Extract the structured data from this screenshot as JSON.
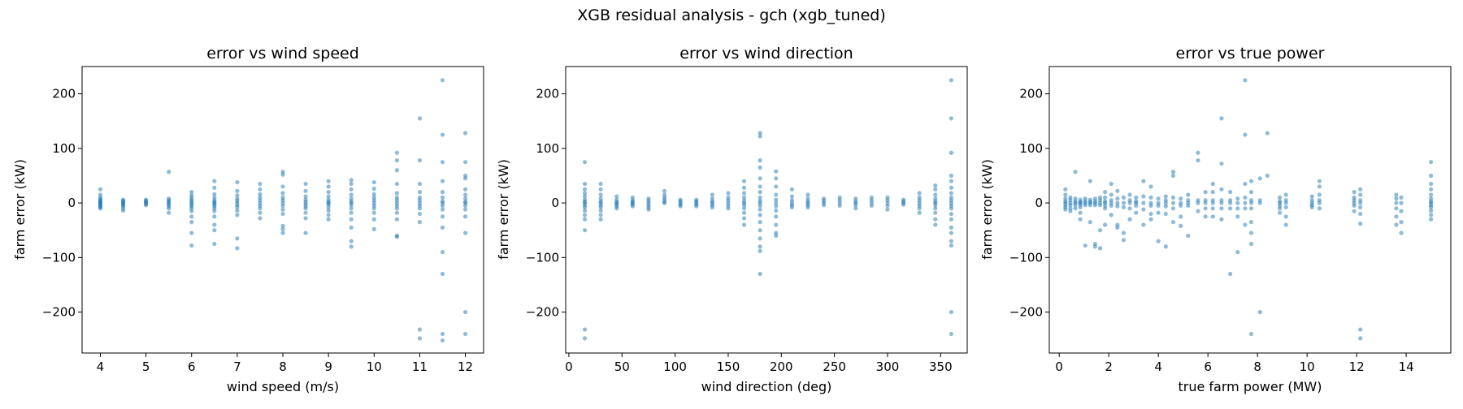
{
  "figure": {
    "suptitle": "XGB residual analysis - gch (xgb_tuned)",
    "point_color": "#1f77b4",
    "background": "#ffffff"
  },
  "chart_data": [
    {
      "type": "scatter",
      "title": "error vs wind speed",
      "xlabel": "wind speed (m/s)",
      "ylabel": "farm error (kW)",
      "xlim": [
        3.6,
        12.4
      ],
      "ylim": [
        -275,
        250
      ],
      "xticks": [
        4,
        5,
        6,
        7,
        8,
        9,
        10,
        11,
        12
      ],
      "xtick_labels": [
        "4",
        "5",
        "6",
        "7",
        "8",
        "9",
        "10",
        "11",
        "12"
      ],
      "yticks": [
        -200,
        -100,
        0,
        100,
        200
      ],
      "ytick_labels": [
        "−200",
        "−100",
        "0",
        "100",
        "200"
      ],
      "grid": false,
      "columns": [
        {
          "x": 4,
          "y": [
            25,
            15,
            10,
            7,
            5,
            3,
            1,
            0,
            -2,
            -4,
            -6,
            -8,
            -10
          ]
        },
        {
          "x": 4.5,
          "y": [
            6,
            4,
            2,
            0,
            -2,
            -4,
            -6,
            -10,
            -14
          ]
        },
        {
          "x": 5,
          "y": [
            6,
            4,
            2,
            0,
            -2,
            -4
          ]
        },
        {
          "x": 5.5,
          "y": [
            57,
            8,
            5,
            2,
            0,
            -3,
            -6,
            -10,
            -18
          ]
        },
        {
          "x": 6,
          "y": [
            20,
            14,
            10,
            6,
            3,
            0,
            -3,
            -6,
            -10,
            -15,
            -25,
            -35,
            -55,
            -78
          ]
        },
        {
          "x": 6.5,
          "y": [
            40,
            28,
            16,
            10,
            5,
            2,
            0,
            -3,
            -6,
            -10,
            -15,
            -25,
            -40,
            -50,
            -75
          ]
        },
        {
          "x": 7,
          "y": [
            38,
            22,
            14,
            8,
            4,
            0,
            -4,
            -8,
            -14,
            -22,
            -65,
            -83
          ]
        },
        {
          "x": 7.5,
          "y": [
            35,
            25,
            16,
            10,
            5,
            0,
            -5,
            -10,
            -18,
            -28
          ]
        },
        {
          "x": 8,
          "y": [
            57,
            52,
            30,
            18,
            10,
            5,
            0,
            -5,
            -12,
            -20,
            -42,
            -48,
            -55
          ]
        },
        {
          "x": 8.5,
          "y": [
            35,
            22,
            12,
            6,
            2,
            -2,
            -6,
            -10,
            -18,
            -28,
            -55
          ]
        },
        {
          "x": 9,
          "y": [
            40,
            30,
            20,
            12,
            6,
            2,
            0,
            -3,
            -8,
            -14,
            -22,
            -30
          ]
        },
        {
          "x": 9.5,
          "y": [
            42,
            35,
            25,
            15,
            8,
            3,
            0,
            -4,
            -10,
            -18,
            -30,
            -45,
            -70,
            -80
          ]
        },
        {
          "x": 10,
          "y": [
            38,
            26,
            16,
            10,
            5,
            0,
            -5,
            -10,
            -18,
            -30,
            -48
          ]
        },
        {
          "x": 10.5,
          "y": [
            92,
            78,
            60,
            35,
            18,
            10,
            5,
            0,
            -5,
            -10,
            -18,
            -30,
            -60,
            -62
          ]
        },
        {
          "x": 11,
          "y": [
            155,
            78,
            35,
            20,
            10,
            5,
            0,
            -5,
            -10,
            -20,
            -35,
            -232,
            -248
          ]
        },
        {
          "x": 11.5,
          "y": [
            225,
            125,
            75,
            40,
            20,
            10,
            3,
            0,
            -5,
            -12,
            -25,
            -45,
            -90,
            -130,
            -240,
            -252
          ]
        },
        {
          "x": 12,
          "y": [
            128,
            75,
            50,
            45,
            25,
            15,
            8,
            2,
            0,
            -5,
            -12,
            -25,
            -55,
            -200,
            -240
          ]
        }
      ]
    },
    {
      "type": "scatter",
      "title": "error vs wind direction",
      "xlabel": "wind direction (deg)",
      "ylabel": "farm error (kW)",
      "xlim": [
        -3,
        375
      ],
      "ylim": [
        -275,
        250
      ],
      "xticks": [
        0,
        50,
        100,
        150,
        200,
        250,
        300,
        350
      ],
      "xtick_labels": [
        "0",
        "50",
        "100",
        "150",
        "200",
        "250",
        "300",
        "350"
      ],
      "yticks": [
        -200,
        -100,
        0,
        100,
        200
      ],
      "ytick_labels": [
        "−200",
        "−100",
        "0",
        "100",
        "200"
      ],
      "grid": false,
      "columns": [
        {
          "x": 15,
          "y": [
            75,
            35,
            25,
            18,
            12,
            6,
            2,
            0,
            -4,
            -8,
            -14,
            -22,
            -30,
            -50,
            -232,
            -248
          ]
        },
        {
          "x": 30,
          "y": [
            35,
            25,
            15,
            8,
            3,
            0,
            -4,
            -8,
            -14,
            -22,
            -30
          ]
        },
        {
          "x": 45,
          "y": [
            12,
            6,
            2,
            0,
            -3,
            -6,
            -10
          ]
        },
        {
          "x": 60,
          "y": [
            10,
            5,
            2,
            0,
            -3,
            -6
          ]
        },
        {
          "x": 75,
          "y": [
            8,
            4,
            0,
            -4,
            -8,
            -12
          ]
        },
        {
          "x": 90,
          "y": [
            22,
            15,
            10,
            6,
            2,
            0
          ]
        },
        {
          "x": 105,
          "y": [
            6,
            3,
            0,
            -3,
            -6
          ]
        },
        {
          "x": 120,
          "y": [
            6,
            3,
            0,
            -3,
            -6
          ]
        },
        {
          "x": 135,
          "y": [
            15,
            8,
            3,
            0,
            -4,
            -8
          ]
        },
        {
          "x": 150,
          "y": [
            18,
            10,
            5,
            0,
            -5,
            -10
          ]
        },
        {
          "x": 165,
          "y": [
            40,
            28,
            18,
            10,
            4,
            0,
            -4,
            -10,
            -18,
            -28,
            -40
          ]
        },
        {
          "x": 180,
          "y": [
            128,
            122,
            78,
            65,
            45,
            30,
            20,
            10,
            4,
            0,
            -5,
            -12,
            -22,
            -35,
            -50,
            -65,
            -80,
            -88,
            -130
          ]
        },
        {
          "x": 195,
          "y": [
            58,
            45,
            30,
            15,
            6,
            0,
            -6,
            -14,
            -25,
            -40,
            -55,
            -60
          ]
        },
        {
          "x": 210,
          "y": [
            25,
            12,
            5,
            0,
            -4,
            -8
          ]
        },
        {
          "x": 225,
          "y": [
            15,
            8,
            3,
            0,
            -4,
            -8
          ]
        },
        {
          "x": 240,
          "y": [
            8,
            4,
            0,
            -4
          ]
        },
        {
          "x": 255,
          "y": [
            10,
            5,
            0,
            -5
          ]
        },
        {
          "x": 270,
          "y": [
            8,
            3,
            0,
            -4,
            -10
          ]
        },
        {
          "x": 285,
          "y": [
            10,
            5,
            0,
            -5
          ]
        },
        {
          "x": 300,
          "y": [
            10,
            5,
            0,
            -5,
            -12
          ]
        },
        {
          "x": 315,
          "y": [
            6,
            3,
            0,
            -3
          ]
        },
        {
          "x": 330,
          "y": [
            18,
            10,
            5,
            0,
            -5,
            -10,
            -18
          ]
        },
        {
          "x": 345,
          "y": [
            32,
            25,
            15,
            8,
            3,
            0,
            -4,
            -10,
            -18,
            -30,
            -40
          ]
        },
        {
          "x": 360,
          "y": [
            225,
            155,
            92,
            50,
            40,
            28,
            18,
            10,
            5,
            0,
            -5,
            -10,
            -20,
            -30,
            -45,
            -55,
            -70,
            -78,
            -200,
            -240
          ]
        }
      ]
    },
    {
      "type": "scatter",
      "title": "error vs true power",
      "xlabel": "true farm power (MW)",
      "ylabel": "farm error (kW)",
      "xlim": [
        -0.4,
        15.8
      ],
      "ylim": [
        -275,
        250
      ],
      "xticks": [
        0,
        2,
        4,
        6,
        8,
        10,
        12,
        14
      ],
      "xtick_labels": [
        "0",
        "2",
        "4",
        "6",
        "8",
        "10",
        "12",
        "14"
      ],
      "yticks": [
        -200,
        -100,
        0,
        100,
        200
      ],
      "ytick_labels": [
        "−200",
        "−100",
        "0",
        "100",
        "200"
      ],
      "grid": false,
      "columns": [
        {
          "x": 0.25,
          "y": [
            25,
            15,
            8,
            3,
            0,
            -4,
            -8,
            -12
          ]
        },
        {
          "x": 0.45,
          "y": [
            10,
            5,
            0,
            -4,
            -10,
            -15
          ]
        },
        {
          "x": 0.65,
          "y": [
            57,
            8,
            3,
            0,
            -4,
            -10
          ]
        },
        {
          "x": 0.85,
          "y": [
            6,
            2,
            0,
            -3,
            -8,
            -18,
            -30
          ]
        },
        {
          "x": 1.05,
          "y": [
            8,
            3,
            0,
            -4,
            -78
          ]
        },
        {
          "x": 1.25,
          "y": [
            40,
            6,
            2,
            0,
            -4,
            -35
          ]
        },
        {
          "x": 1.45,
          "y": [
            8,
            3,
            0,
            -4,
            -75,
            -80
          ]
        },
        {
          "x": 1.65,
          "y": [
            10,
            5,
            0,
            -4,
            -50,
            -83
          ]
        },
        {
          "x": 1.85,
          "y": [
            20,
            10,
            3,
            0,
            -5,
            -10,
            -40
          ]
        },
        {
          "x": 2.1,
          "y": [
            35,
            15,
            5,
            0,
            -5,
            -22
          ]
        },
        {
          "x": 2.35,
          "y": [
            22,
            8,
            0,
            -6,
            -40,
            -45
          ]
        },
        {
          "x": 2.6,
          "y": [
            10,
            0,
            -8,
            -55,
            -68
          ]
        },
        {
          "x": 2.85,
          "y": [
            15,
            5,
            0,
            -10,
            -30
          ]
        },
        {
          "x": 3.1,
          "y": [
            10,
            3,
            0,
            -5,
            -18
          ]
        },
        {
          "x": 3.4,
          "y": [
            40,
            12,
            0,
            -12,
            -40
          ]
        },
        {
          "x": 3.7,
          "y": [
            30,
            10,
            0,
            -5,
            -20,
            -30
          ]
        },
        {
          "x": 4.0,
          "y": [
            8,
            0,
            -5,
            -18,
            -70
          ]
        },
        {
          "x": 4.3,
          "y": [
            12,
            5,
            0,
            -6,
            -20,
            -80
          ]
        },
        {
          "x": 4.6,
          "y": [
            57,
            50,
            10,
            0,
            -10,
            -35
          ]
        },
        {
          "x": 4.9,
          "y": [
            8,
            0,
            -5,
            -25,
            -42
          ]
        },
        {
          "x": 5.2,
          "y": [
            15,
            5,
            0,
            -5,
            -60
          ]
        },
        {
          "x": 5.6,
          "y": [
            92,
            78,
            5,
            0,
            -15
          ]
        },
        {
          "x": 5.9,
          "y": [
            20,
            5,
            0,
            -10,
            -25
          ]
        },
        {
          "x": 6.2,
          "y": [
            35,
            20,
            5,
            0,
            -10,
            -25
          ]
        },
        {
          "x": 6.55,
          "y": [
            155,
            72,
            25,
            5,
            0,
            -10,
            -30
          ]
        },
        {
          "x": 6.9,
          "y": [
            20,
            5,
            0,
            -10,
            -130
          ]
        },
        {
          "x": 7.2,
          "y": [
            8,
            0,
            -10,
            -90,
            -25
          ]
        },
        {
          "x": 7.5,
          "y": [
            225,
            125,
            35,
            10,
            0,
            -10,
            -40
          ]
        },
        {
          "x": 7.75,
          "y": [
            40,
            20,
            5,
            0,
            -10,
            -35,
            -55,
            -75,
            -240
          ]
        },
        {
          "x": 8.1,
          "y": [
            45,
            5,
            0,
            -200
          ]
        },
        {
          "x": 8.4,
          "y": [
            128,
            50
          ]
        },
        {
          "x": 8.9,
          "y": [
            10,
            3,
            0,
            -5,
            -10,
            -18
          ]
        },
        {
          "x": 9.15,
          "y": [
            15,
            5,
            0,
            -8,
            -25,
            -40
          ]
        },
        {
          "x": 10.2,
          "y": [
            12,
            5,
            0,
            -4,
            -8
          ]
        },
        {
          "x": 10.5,
          "y": [
            40,
            30,
            15,
            5,
            0,
            -10
          ]
        },
        {
          "x": 11.9,
          "y": [
            20,
            10,
            5,
            0,
            -5,
            -15
          ]
        },
        {
          "x": 12.15,
          "y": [
            25,
            15,
            5,
            0,
            -8,
            -20,
            -38,
            -232,
            -248
          ]
        },
        {
          "x": 13.6,
          "y": [
            15,
            8,
            0,
            -10,
            -25,
            -40
          ]
        },
        {
          "x": 13.8,
          "y": [
            10,
            0,
            -15,
            -35,
            -55
          ]
        },
        {
          "x": 15.0,
          "y": [
            75,
            50,
            35,
            25,
            15,
            8,
            3,
            0,
            -4,
            -8,
            -14,
            -22,
            -30
          ]
        }
      ]
    }
  ]
}
